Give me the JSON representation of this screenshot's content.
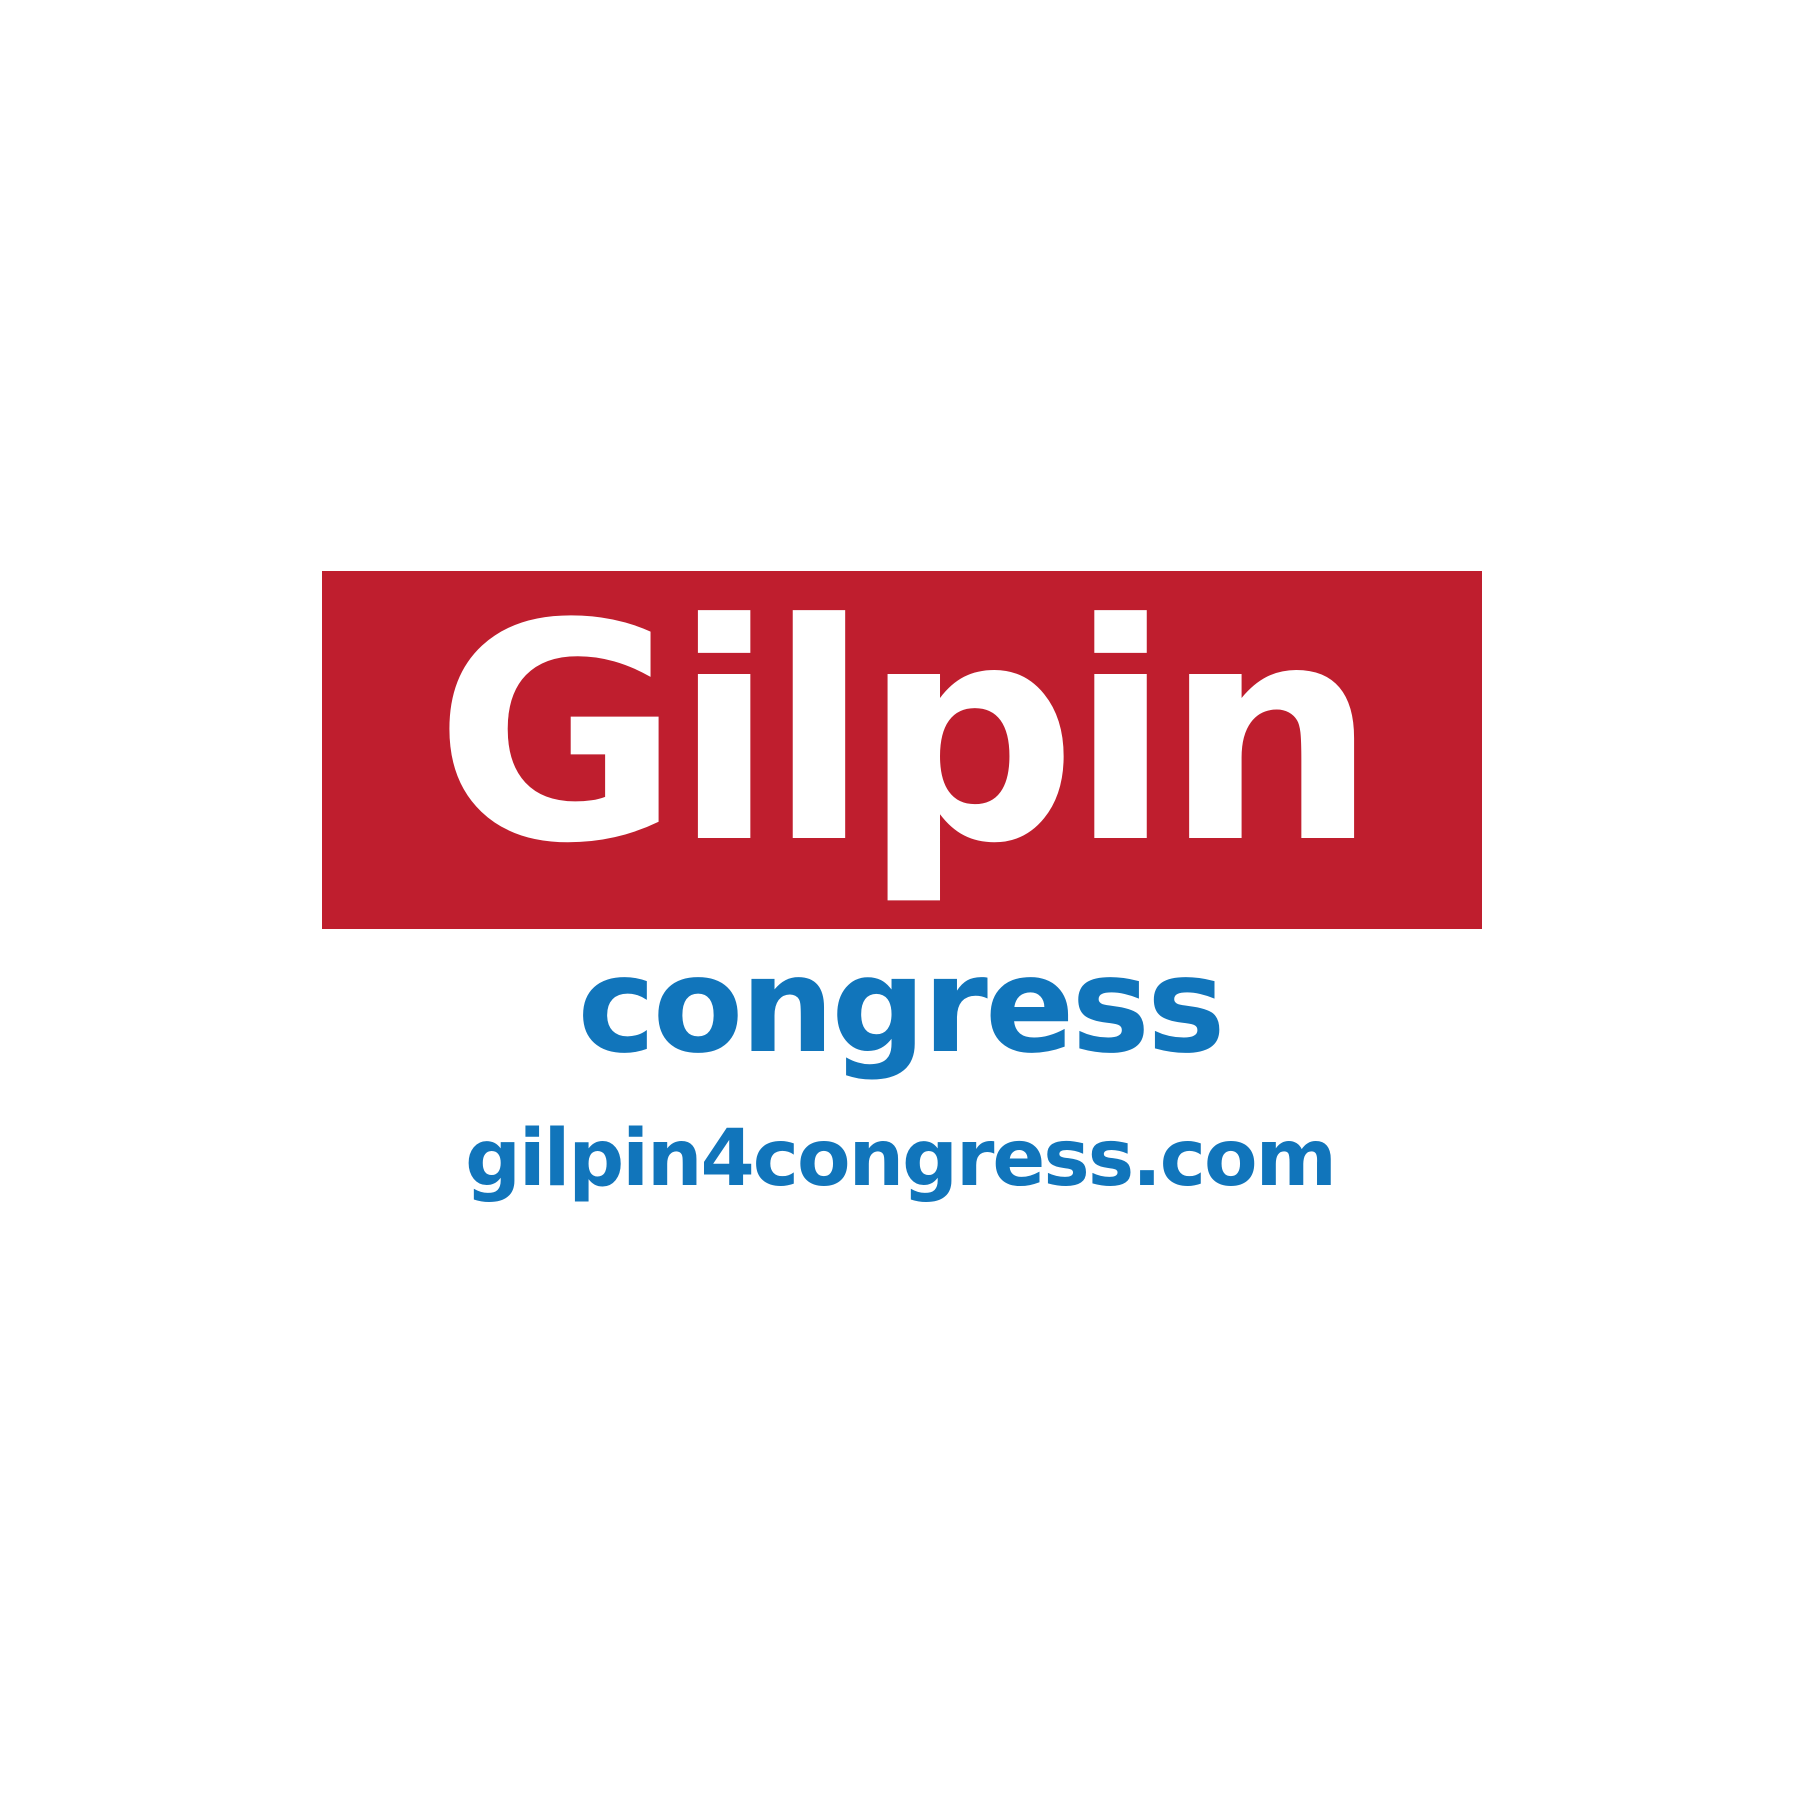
{
  "logo": {
    "name": "Gilpin",
    "subtitle": "congress",
    "website": "gilpin4congress.com"
  },
  "colors": {
    "background": "#ffffff",
    "banner_red": "#bf1e2e",
    "name_text": "#ffffff",
    "blue": "#1175bb"
  }
}
